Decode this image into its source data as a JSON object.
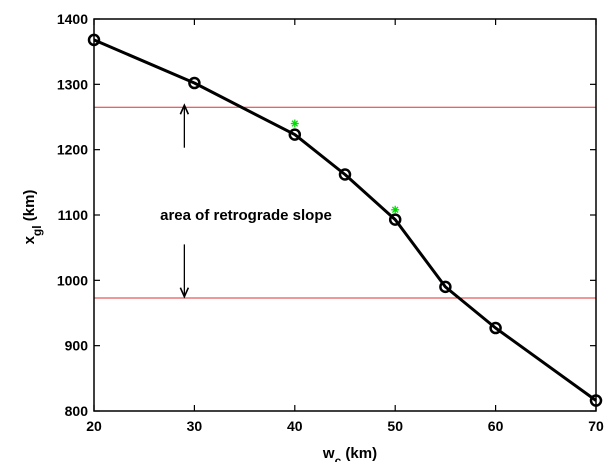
{
  "chart_data": {
    "type": "line",
    "xlabel": {
      "main": "w",
      "sub": "c",
      "unit": " (km)"
    },
    "ylabel": {
      "main": "x",
      "sub": "gl",
      "unit": " (km)"
    },
    "xlim": [
      20,
      70
    ],
    "ylim": [
      800,
      1400
    ],
    "xticks": [
      20,
      30,
      40,
      50,
      60,
      70
    ],
    "yticks": [
      800,
      900,
      1000,
      1100,
      1200,
      1300,
      1400
    ],
    "grid": false,
    "series": [
      {
        "x": [
          20,
          30,
          40,
          45,
          50,
          55,
          60,
          70
        ],
        "y": [
          1368,
          1302,
          1223,
          1162,
          1093,
          990,
          927,
          816
        ],
        "color": "#000000",
        "marker": "circle"
      }
    ],
    "highlight_points": {
      "x": [
        40,
        50
      ],
      "y": [
        1240,
        1108
      ],
      "color": "#00dd00",
      "marker": "asterisk"
    },
    "reference_lines": [
      {
        "y": 1265,
        "color": "#e03030"
      },
      {
        "y": 973,
        "color": "#e03030"
      }
    ],
    "annotation": {
      "text": "area of retrograde slope",
      "arrow_x": 29,
      "arrow_from_y": 1203,
      "arrow_up_to_y": 1268,
      "arrow_down_from_y": 1055,
      "arrow_down_to_y": 975
    }
  }
}
